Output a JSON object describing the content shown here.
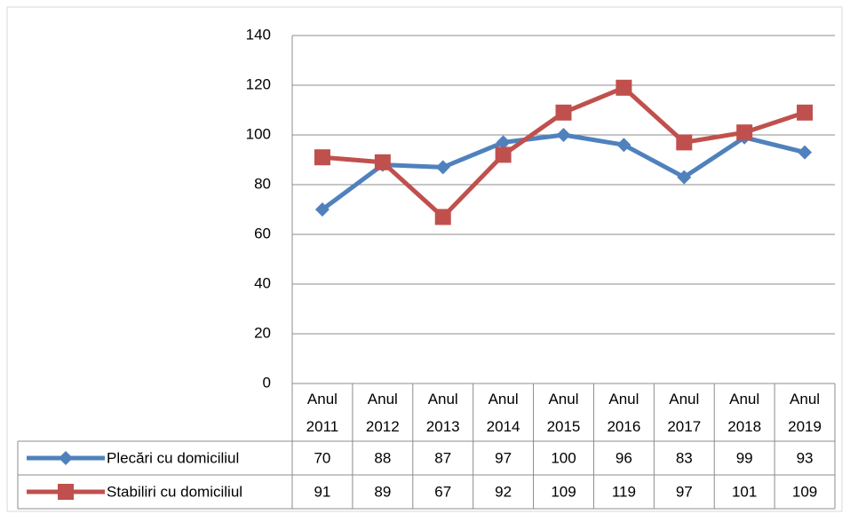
{
  "chart_data": {
    "type": "line",
    "categories": [
      "Anul 2011",
      "Anul 2012",
      "Anul 2013",
      "Anul 2014",
      "Anul 2015",
      "Anul 2016",
      "Anul 2017",
      "Anul 2018",
      "Anul 2019"
    ],
    "series": [
      {
        "name": "Plecări cu domiciliul",
        "color": "#4f81bd",
        "marker": "diamond",
        "values": [
          70,
          88,
          87,
          97,
          100,
          96,
          83,
          99,
          93
        ]
      },
      {
        "name": "Stabiliri cu domiciliul",
        "color": "#c0504d",
        "marker": "square",
        "values": [
          91,
          89,
          67,
          92,
          109,
          119,
          97,
          101,
          109
        ]
      }
    ],
    "ylim": [
      0,
      140
    ],
    "yticks": [
      0,
      20,
      40,
      60,
      80,
      100,
      120,
      140
    ],
    "grid": true
  }
}
